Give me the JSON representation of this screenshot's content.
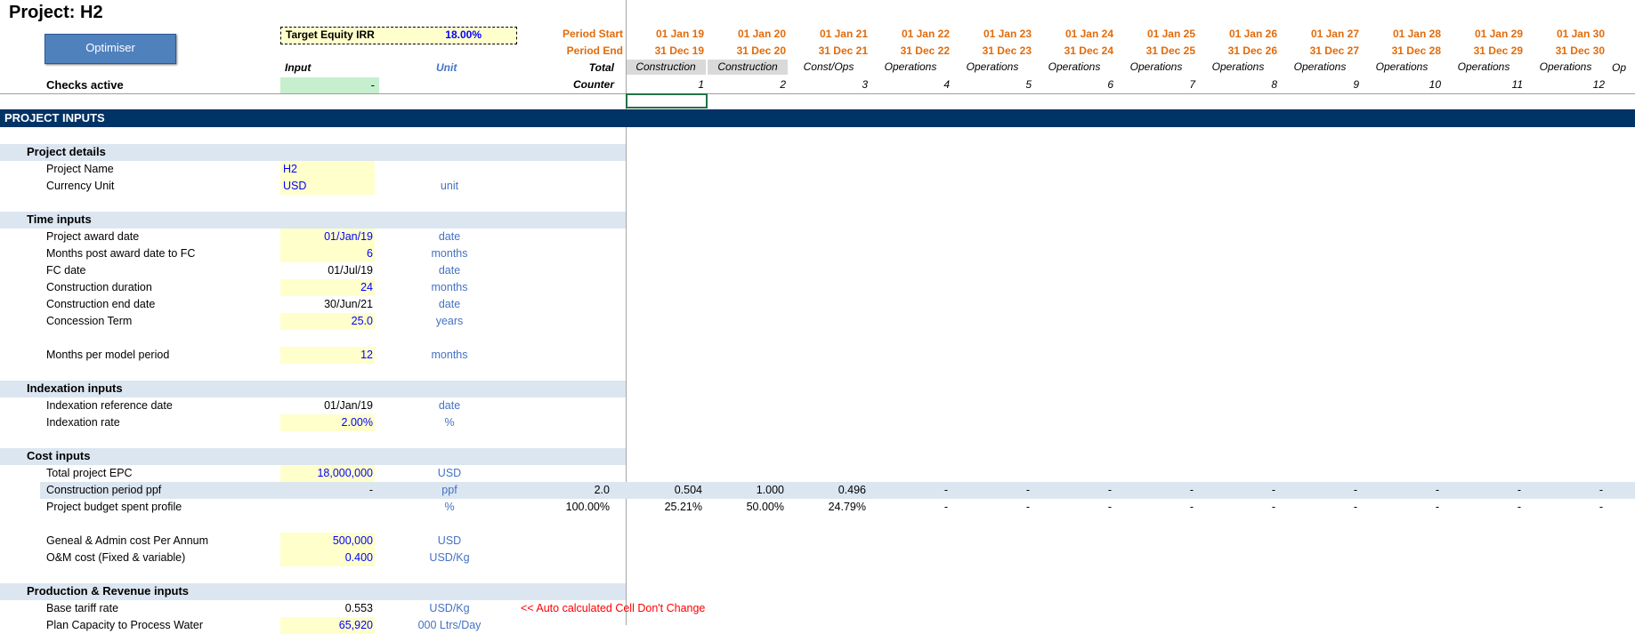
{
  "sheet": {
    "title": "Project: H2",
    "optimiser_button": "Optimiser",
    "target_irr_label": "Target Equity IRR",
    "target_irr_value": "18.00%",
    "checks_label": "Checks active",
    "checks_value": "-",
    "col_input": "Input",
    "col_unit": "Unit",
    "col_total": "Total",
    "row_period_start": "Period Start",
    "row_period_end": "Period End",
    "row_counter": "Counter",
    "note_auto": "<< Auto calculated Cell Don't Change"
  },
  "timeline": {
    "starts": [
      "01 Jan 19",
      "01 Jan 20",
      "01 Jan 21",
      "01 Jan 22",
      "01 Jan 23",
      "01 Jan 24",
      "01 Jan 25",
      "01 Jan 26",
      "01 Jan 27",
      "01 Jan 28",
      "01 Jan 29",
      "01 Jan 30"
    ],
    "ends": [
      "31 Dec 19",
      "31 Dec 20",
      "31 Dec 21",
      "31 Dec 22",
      "31 Dec 23",
      "31 Dec 24",
      "31 Dec 25",
      "31 Dec 26",
      "31 Dec 27",
      "31 Dec 28",
      "31 Dec 29",
      "31 Dec 30"
    ],
    "phases": [
      "Construction",
      "Construction",
      "Const/Ops",
      "Operations",
      "Operations",
      "Operations",
      "Operations",
      "Operations",
      "Operations",
      "Operations",
      "Operations",
      "Operations"
    ],
    "counters": [
      "1",
      "2",
      "3",
      "4",
      "5",
      "6",
      "7",
      "8",
      "9",
      "10",
      "11",
      "12"
    ],
    "phase_overflow": "Op"
  },
  "section_header": "PROJECT INPUTS",
  "groups": {
    "project_details": "Project details",
    "time_inputs": "Time inputs",
    "indexation_inputs": "Indexation inputs",
    "cost_inputs": "Cost inputs",
    "production_inputs": "Production & Revenue inputs"
  },
  "rows": {
    "project_name": {
      "label": "Project Name",
      "value": "H2",
      "unit": ""
    },
    "currency_unit": {
      "label": "Currency Unit",
      "value": "USD",
      "unit": "unit"
    },
    "award_date": {
      "label": "Project award date",
      "value": "01/Jan/19",
      "unit": "date"
    },
    "months_to_fc": {
      "label": "Months post award date to FC",
      "value": "6",
      "unit": "months"
    },
    "fc_date": {
      "label": "FC date",
      "value": "01/Jul/19",
      "unit": "date"
    },
    "construction_duration": {
      "label": "Construction duration",
      "value": "24",
      "unit": "months"
    },
    "construction_end": {
      "label": "Construction end date",
      "value": "30/Jun/21",
      "unit": "date"
    },
    "concession_term": {
      "label": "Concession Term",
      "value": "25.0",
      "unit": "years"
    },
    "months_per_period": {
      "label": "Months per model period",
      "value": "12",
      "unit": "months"
    },
    "index_ref_date": {
      "label": "Indexation reference date",
      "value": "01/Jan/19",
      "unit": "date"
    },
    "index_rate": {
      "label": "Indexation rate",
      "value": "2.00%",
      "unit": "%"
    },
    "total_epc": {
      "label": "Total project EPC",
      "value": "18,000,000",
      "unit": "USD"
    },
    "construction_ppf": {
      "label": "Construction period ppf",
      "value": "-",
      "unit": "ppf",
      "total": "2.0",
      "periods": [
        "0.504",
        "1.000",
        "0.496",
        "-",
        "-",
        "-",
        "-",
        "-",
        "-",
        "-",
        "-",
        "-"
      ]
    },
    "budget_profile": {
      "label": "Project budget spent profile",
      "value": "",
      "unit": "%",
      "total": "100.00%",
      "periods": [
        "25.21%",
        "50.00%",
        "24.79%",
        "-",
        "-",
        "-",
        "-",
        "-",
        "-",
        "-",
        "-",
        "-"
      ]
    },
    "ga_cost": {
      "label": "Geneal & Admin cost Per Annum",
      "value": "500,000",
      "unit": "USD"
    },
    "om_cost": {
      "label": "O&M cost (Fixed & variable)",
      "value": "0.400",
      "unit": "USD/Kg"
    },
    "base_tariff": {
      "label": "Base tariff rate",
      "value": "0.553",
      "unit": "USD/Kg"
    },
    "plan_capacity": {
      "label": "Plan Capacity to Process Water",
      "value": "65,920",
      "unit": "000 Ltrs/Day"
    }
  },
  "colors": {
    "header_navy": "#003366",
    "orange": "#e26b0a",
    "input_yellow": "#ffffcc",
    "band": "#dce6f1"
  }
}
